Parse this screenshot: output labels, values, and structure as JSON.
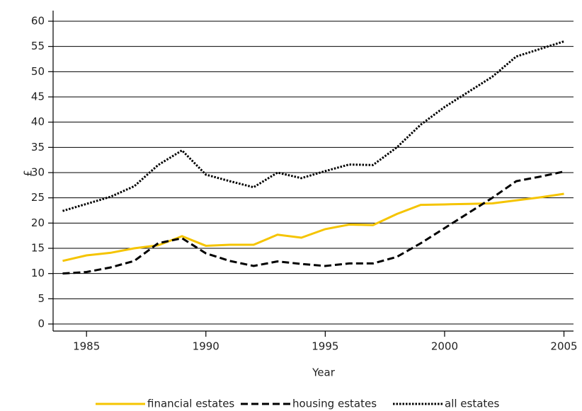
{
  "chart_data": {
    "type": "line",
    "x_label": "Year",
    "y_label": "£",
    "x": [
      1984,
      1985,
      1986,
      1987,
      1988,
      1989,
      1990,
      1991,
      1992,
      1993,
      1994,
      1995,
      1996,
      1997,
      1998,
      1999,
      2000,
      2001,
      2002,
      2003,
      2004,
      2005
    ],
    "series": [
      {
        "name": "financial estates",
        "color": "#f5c400",
        "dash": "solid",
        "values": [
          12.5,
          13.6,
          14.1,
          15.0,
          15.6,
          17.4,
          15.5,
          15.7,
          15.7,
          17.7,
          17.1,
          18.8,
          19.7,
          19.6,
          21.8,
          23.6,
          23.7,
          23.8,
          23.9,
          24.5,
          25.1,
          25.8
        ]
      },
      {
        "name": "housing estates",
        "color": "#000000",
        "dash": "dashed",
        "values": [
          10.0,
          10.3,
          11.2,
          12.5,
          16.0,
          17.0,
          14.0,
          12.5,
          11.5,
          12.4,
          11.9,
          11.5,
          12.0,
          12.0,
          13.3,
          16.0,
          19.0,
          22.0,
          25.0,
          28.3,
          29.2,
          30.2
        ]
      },
      {
        "name": "all estates",
        "color": "#000000",
        "dash": "dotted",
        "values": [
          22.4,
          23.8,
          25.2,
          27.3,
          31.5,
          34.4,
          29.6,
          28.3,
          27.1,
          30.0,
          28.9,
          30.3,
          31.6,
          31.5,
          35.0,
          39.5,
          43.0,
          46.0,
          49.0,
          53.0,
          54.5,
          56.0
        ]
      }
    ],
    "xlim": [
      1983.6,
      2005.4
    ],
    "xticks": [
      1985,
      1990,
      1995,
      2000,
      2005
    ],
    "ylim": [
      -1.4,
      62.1
    ],
    "yticks": [
      0,
      5,
      10,
      15,
      20,
      25,
      30,
      35,
      40,
      45,
      50,
      55,
      60
    ],
    "grid": true,
    "legend": "bottom"
  }
}
